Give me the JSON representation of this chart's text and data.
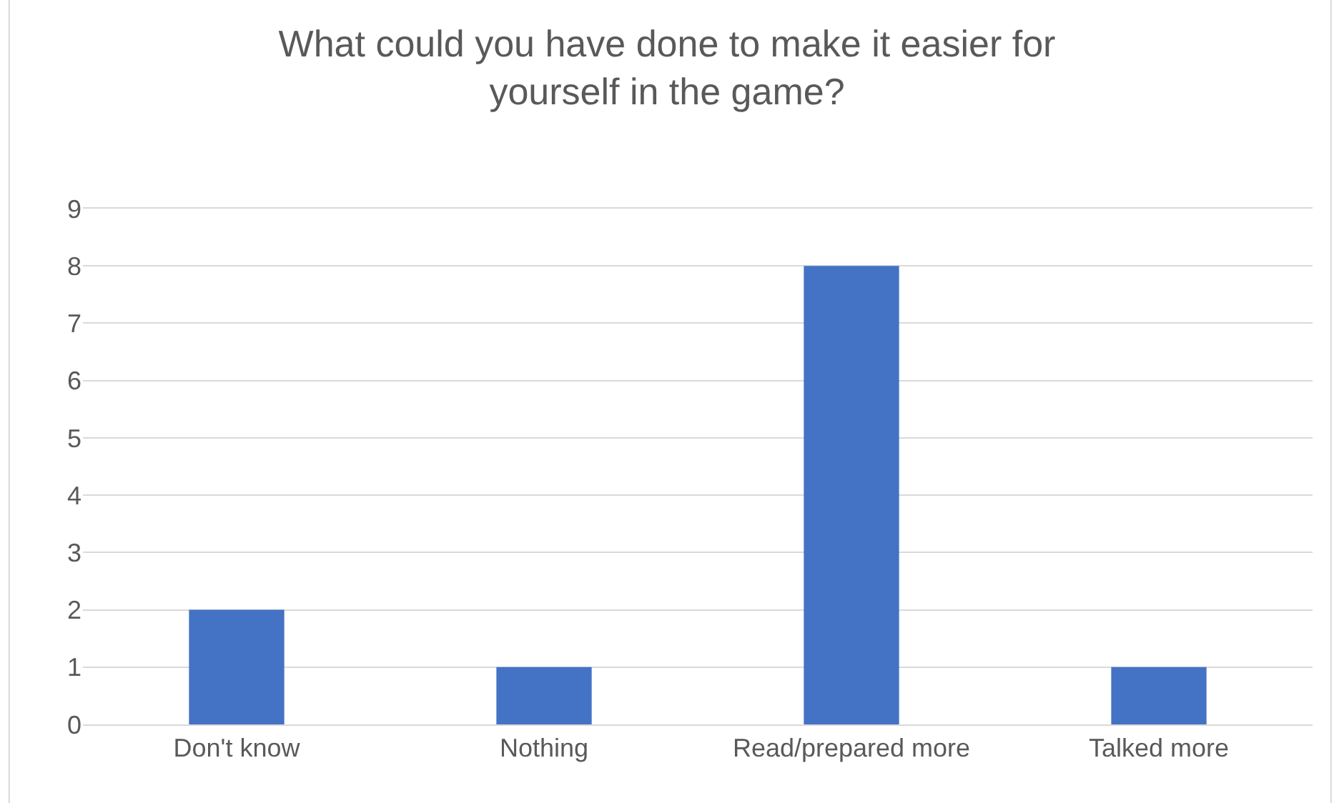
{
  "chart_data": {
    "type": "bar",
    "title": "What could you have done to make it easier for yourself in the game?",
    "categories": [
      "Don't know",
      "Nothing",
      "Read/prepared more",
      "Talked more"
    ],
    "values": [
      2,
      1,
      8,
      1
    ],
    "color": "#4472c4",
    "ylim": [
      0,
      9
    ],
    "yticks": [
      0,
      1,
      2,
      3,
      4,
      5,
      6,
      7,
      8,
      9
    ],
    "grid": "y",
    "legend": false
  }
}
